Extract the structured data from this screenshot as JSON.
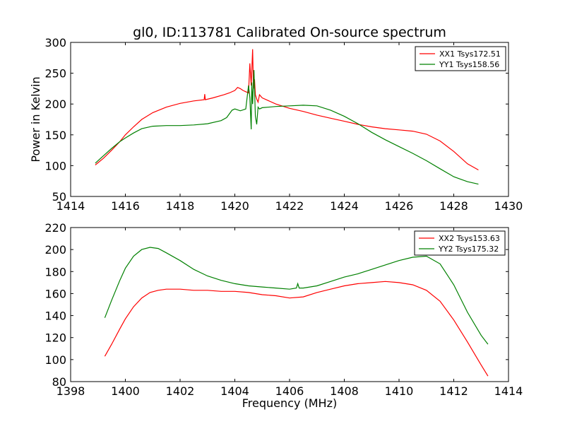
{
  "figure": {
    "title": "gl0, ID:113781 Calibrated On-source spectrum",
    "background": "#ffffff"
  },
  "chart_data": [
    {
      "type": "line",
      "title": "gl0, ID:113781 Calibrated On-source spectrum",
      "xlabel": "",
      "ylabel": "Power in Kelvin",
      "xlim": [
        1414,
        1430
      ],
      "ylim": [
        50,
        300
      ],
      "xticks": [
        1414,
        1416,
        1418,
        1420,
        1422,
        1424,
        1426,
        1428,
        1430
      ],
      "yticks": [
        50,
        100,
        150,
        200,
        250,
        300
      ],
      "legend_position": "top-right",
      "grid": false,
      "series": [
        {
          "name": "XX1 Tsys172.51",
          "color": "#ff0000",
          "x": [
            1414.9,
            1415.2,
            1415.5,
            1415.8,
            1416.0,
            1416.3,
            1416.6,
            1417.0,
            1417.5,
            1418.0,
            1418.5,
            1418.88,
            1418.9,
            1418.92,
            1419.2,
            1419.6,
            1419.8,
            1420.0,
            1420.1,
            1420.2,
            1420.3,
            1420.4,
            1420.5,
            1420.55,
            1420.6,
            1420.65,
            1420.68,
            1420.72,
            1420.75,
            1420.8,
            1420.85,
            1420.9,
            1421.0,
            1421.5,
            1422.0,
            1422.5,
            1423.0,
            1423.5,
            1424.0,
            1424.5,
            1425.0,
            1425.5,
            1426.0,
            1426.5,
            1427.0,
            1427.5,
            1428.0,
            1428.5,
            1428.9
          ],
          "values": [
            101,
            112,
            125,
            139,
            150,
            163,
            175,
            186,
            195,
            201,
            205,
            207,
            216,
            207,
            210,
            215,
            218,
            222,
            227,
            225,
            222,
            220,
            218,
            266,
            230,
            289,
            225,
            240,
            215,
            208,
            203,
            215,
            210,
            200,
            193,
            188,
            182,
            177,
            172,
            167,
            163,
            160,
            158,
            156,
            151,
            140,
            123,
            103,
            93
          ]
        },
        {
          "name": "YY1 Tsys158.56",
          "color": "#008000",
          "x": [
            1414.9,
            1415.2,
            1415.5,
            1415.8,
            1416.0,
            1416.3,
            1416.6,
            1417.0,
            1417.5,
            1418.0,
            1418.5,
            1419.0,
            1419.5,
            1419.7,
            1419.9,
            1420.0,
            1420.2,
            1420.4,
            1420.5,
            1420.55,
            1420.6,
            1420.62,
            1420.65,
            1420.7,
            1420.75,
            1420.8,
            1420.85,
            1420.9,
            1421.0,
            1421.5,
            1422.0,
            1422.5,
            1423.0,
            1423.5,
            1424.0,
            1424.5,
            1425.0,
            1425.5,
            1426.0,
            1426.5,
            1427.0,
            1427.5,
            1428.0,
            1428.5,
            1428.9
          ],
          "values": [
            104,
            116,
            128,
            139,
            145,
            153,
            160,
            164,
            165,
            165,
            166,
            168,
            173,
            178,
            190,
            192,
            189,
            192,
            230,
            210,
            159,
            235,
            200,
            255,
            180,
            167,
            195,
            192,
            194,
            196,
            197,
            198,
            197,
            190,
            180,
            168,
            154,
            142,
            131,
            120,
            108,
            95,
            82,
            74,
            70
          ]
        }
      ]
    },
    {
      "type": "line",
      "title": "",
      "xlabel": "Frequency (MHz)",
      "ylabel": "",
      "xlim": [
        1398,
        1414
      ],
      "ylim": [
        80,
        220
      ],
      "xticks": [
        1398,
        1400,
        1402,
        1404,
        1406,
        1408,
        1410,
        1412,
        1414
      ],
      "yticks": [
        80,
        100,
        120,
        140,
        160,
        180,
        200,
        220
      ],
      "legend_position": "top-right",
      "grid": false,
      "series": [
        {
          "name": "XX2 Tsys153.63",
          "color": "#ff0000",
          "x": [
            1399.25,
            1399.5,
            1399.8,
            1400.0,
            1400.3,
            1400.6,
            1400.9,
            1401.2,
            1401.5,
            1402.0,
            1402.5,
            1403.0,
            1403.5,
            1404.0,
            1404.5,
            1405.0,
            1405.5,
            1406.0,
            1406.5,
            1407.0,
            1407.5,
            1408.0,
            1408.5,
            1409.0,
            1409.5,
            1410.0,
            1410.5,
            1411.0,
            1411.5,
            1412.0,
            1412.5,
            1413.0,
            1413.25
          ],
          "values": [
            103,
            114,
            128,
            137,
            148,
            156,
            161,
            163,
            164,
            164,
            163,
            163,
            162,
            162,
            161,
            159,
            158,
            156,
            157,
            161,
            164,
            167,
            169,
            170,
            171,
            170,
            168,
            163,
            153,
            136,
            116,
            95,
            85
          ]
        },
        {
          "name": "YY2 Tsys175.32",
          "color": "#008000",
          "x": [
            1399.25,
            1399.5,
            1399.8,
            1400.0,
            1400.3,
            1400.6,
            1400.9,
            1401.2,
            1401.5,
            1402.0,
            1402.5,
            1403.0,
            1403.5,
            1404.0,
            1404.5,
            1405.0,
            1405.5,
            1406.0,
            1406.25,
            1406.3,
            1406.35,
            1406.5,
            1407.0,
            1407.5,
            1408.0,
            1408.5,
            1409.0,
            1409.5,
            1410.0,
            1410.5,
            1411.0,
            1411.5,
            1412.0,
            1412.5,
            1413.0,
            1413.25
          ],
          "values": [
            138,
            154,
            172,
            183,
            194,
            200,
            202,
            201,
            197,
            190,
            182,
            176,
            172,
            169,
            167,
            166,
            165,
            164,
            165,
            169,
            165,
            165,
            167,
            171,
            175,
            178,
            182,
            186,
            190,
            193,
            194,
            187,
            168,
            143,
            122,
            114
          ]
        }
      ]
    }
  ]
}
